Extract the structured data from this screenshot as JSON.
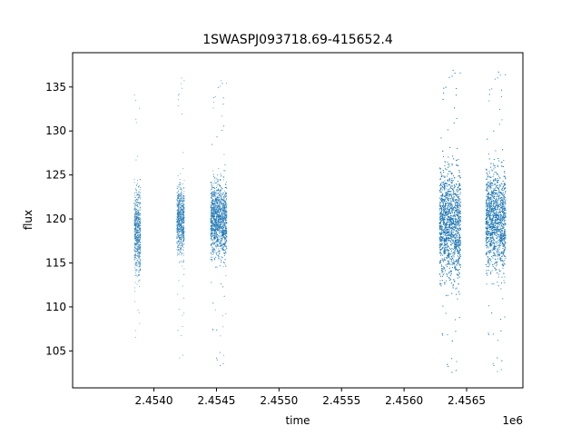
{
  "chart_data": {
    "type": "scatter",
    "title": "1SWASPJ093718.69-415652.4",
    "xlabel": "time",
    "ylabel": "flux",
    "x_offset_label": "1e6",
    "xlim": [
      2.45335,
      2.45695
    ],
    "ylim": [
      100.8,
      138.9
    ],
    "x_ticks": [
      2.454,
      2.4545,
      2.455,
      2.4555,
      2.456,
      2.4565
    ],
    "x_tick_labels": [
      "2.4540",
      "2.4545",
      "2.4550",
      "2.4555",
      "2.4560",
      "2.4565"
    ],
    "y_ticks": [
      105,
      110,
      115,
      120,
      125,
      130,
      135
    ],
    "y_tick_labels": [
      "105",
      "110",
      "115",
      "120",
      "125",
      "130",
      "135"
    ],
    "grid": false,
    "legend": "none",
    "marker_color": "#1f77b4",
    "clusters": [
      {
        "x_start": 2.45384,
        "x_end": 2.45389,
        "y_center": 118.5,
        "y_spread": 2.3,
        "y_min": 105.5,
        "y_max": 135.6,
        "points": 700
      },
      {
        "x_start": 2.45418,
        "x_end": 2.45424,
        "y_center": 120.0,
        "y_spread": 1.8,
        "y_min": 103.0,
        "y_max": 136.3,
        "points": 800
      },
      {
        "x_start": 2.45445,
        "x_end": 2.45458,
        "y_center": 120.0,
        "y_spread": 2.0,
        "y_min": 103.0,
        "y_max": 136.0,
        "points": 2200
      },
      {
        "x_start": 2.45628,
        "x_end": 2.45645,
        "y_center": 119.5,
        "y_spread": 3.0,
        "y_min": 102.2,
        "y_max": 137.2,
        "points": 4200
      },
      {
        "x_start": 2.45665,
        "x_end": 2.45681,
        "y_center": 120.0,
        "y_spread": 2.7,
        "y_min": 102.3,
        "y_max": 137.0,
        "points": 3300
      }
    ]
  }
}
